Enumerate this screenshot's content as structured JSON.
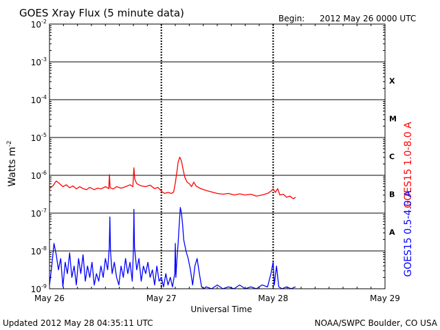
{
  "chart_data": {
    "type": "line",
    "title": "GOES Xray Flux (5 minute data)",
    "begin_label": "Begin:",
    "begin_value": "2012 May 26 0000 UTC",
    "xlabel": "Universal Time",
    "ylabel_base": "Watts m",
    "ylabel_exp": "-2",
    "x_range_days": [
      0,
      3
    ],
    "x_ticks": [
      {
        "day": 0,
        "label": "May 26"
      },
      {
        "day": 1,
        "label": "May 27"
      },
      {
        "day": 2,
        "label": "May 28"
      },
      {
        "day": 3,
        "label": "May 29"
      }
    ],
    "y_scale": "log",
    "y_range_exp": [
      -9,
      -2
    ],
    "y_ticks": [
      {
        "exp": -2,
        "base": "10",
        "sup": "-2"
      },
      {
        "exp": -3,
        "base": "10",
        "sup": "-3"
      },
      {
        "exp": -4,
        "base": "10",
        "sup": "-4"
      },
      {
        "exp": -5,
        "base": "10",
        "sup": "-5"
      },
      {
        "exp": -6,
        "base": "10",
        "sup": "-6"
      },
      {
        "exp": -7,
        "base": "10",
        "sup": "-7"
      },
      {
        "exp": -8,
        "base": "10",
        "sup": "-8"
      },
      {
        "exp": -9,
        "base": "10",
        "sup": "-9"
      }
    ],
    "flare_classes": [
      {
        "label": "X",
        "exp": -3.5
      },
      {
        "label": "M",
        "exp": -4.5
      },
      {
        "label": "C",
        "exp": -5.5
      },
      {
        "label": "B",
        "exp": -6.5
      },
      {
        "label": "A",
        "exp": -7.5
      }
    ],
    "grid": true,
    "series": [
      {
        "name": "GOES15 1.0-8.0 A",
        "color": "#ff0000",
        "points": [
          [
            0.0,
            -6.35
          ],
          [
            0.03,
            -6.28
          ],
          [
            0.06,
            -6.15
          ],
          [
            0.09,
            -6.22
          ],
          [
            0.12,
            -6.3
          ],
          [
            0.15,
            -6.25
          ],
          [
            0.18,
            -6.33
          ],
          [
            0.21,
            -6.28
          ],
          [
            0.24,
            -6.36
          ],
          [
            0.27,
            -6.3
          ],
          [
            0.3,
            -6.35
          ],
          [
            0.33,
            -6.38
          ],
          [
            0.36,
            -6.32
          ],
          [
            0.4,
            -6.38
          ],
          [
            0.43,
            -6.34
          ],
          [
            0.46,
            -6.36
          ],
          [
            0.5,
            -6.3
          ],
          [
            0.53,
            -6.35
          ],
          [
            0.536,
            -5.98
          ],
          [
            0.542,
            -6.33
          ],
          [
            0.57,
            -6.36
          ],
          [
            0.6,
            -6.3
          ],
          [
            0.64,
            -6.34
          ],
          [
            0.68,
            -6.3
          ],
          [
            0.72,
            -6.25
          ],
          [
            0.745,
            -6.3
          ],
          [
            0.755,
            -5.8
          ],
          [
            0.762,
            -6.1
          ],
          [
            0.78,
            -6.22
          ],
          [
            0.82,
            -6.28
          ],
          [
            0.86,
            -6.3
          ],
          [
            0.9,
            -6.26
          ],
          [
            0.94,
            -6.35
          ],
          [
            0.97,
            -6.32
          ],
          [
            1.0,
            -6.42
          ],
          [
            1.03,
            -6.48
          ],
          [
            1.06,
            -6.45
          ],
          [
            1.09,
            -6.48
          ],
          [
            1.11,
            -6.44
          ],
          [
            1.125,
            -6.2
          ],
          [
            1.14,
            -5.9
          ],
          [
            1.15,
            -5.65
          ],
          [
            1.165,
            -5.52
          ],
          [
            1.18,
            -5.62
          ],
          [
            1.195,
            -5.85
          ],
          [
            1.21,
            -6.05
          ],
          [
            1.23,
            -6.18
          ],
          [
            1.25,
            -6.22
          ],
          [
            1.27,
            -6.3
          ],
          [
            1.29,
            -6.18
          ],
          [
            1.31,
            -6.28
          ],
          [
            1.35,
            -6.35
          ],
          [
            1.4,
            -6.4
          ],
          [
            1.45,
            -6.44
          ],
          [
            1.5,
            -6.48
          ],
          [
            1.55,
            -6.5
          ],
          [
            1.6,
            -6.48
          ],
          [
            1.65,
            -6.52
          ],
          [
            1.7,
            -6.49
          ],
          [
            1.75,
            -6.52
          ],
          [
            1.8,
            -6.5
          ],
          [
            1.85,
            -6.55
          ],
          [
            1.9,
            -6.52
          ],
          [
            1.95,
            -6.48
          ],
          [
            1.98,
            -6.42
          ],
          [
            2.0,
            -6.36
          ],
          [
            2.02,
            -6.45
          ],
          [
            2.04,
            -6.35
          ],
          [
            2.06,
            -6.52
          ],
          [
            2.09,
            -6.5
          ],
          [
            2.12,
            -6.58
          ],
          [
            2.15,
            -6.55
          ],
          [
            2.18,
            -6.62
          ],
          [
            2.2,
            -6.58
          ]
        ]
      },
      {
        "name": "GOES15 0.5-4.0 A",
        "color": "#0000ff",
        "points": [
          [
            0.0,
            -8.9
          ],
          [
            0.02,
            -8.4
          ],
          [
            0.04,
            -7.8
          ],
          [
            0.06,
            -8.1
          ],
          [
            0.08,
            -8.5
          ],
          [
            0.1,
            -8.2
          ],
          [
            0.12,
            -8.95
          ],
          [
            0.14,
            -8.3
          ],
          [
            0.16,
            -8.6
          ],
          [
            0.18,
            -8.05
          ],
          [
            0.2,
            -8.7
          ],
          [
            0.22,
            -8.4
          ],
          [
            0.24,
            -8.9
          ],
          [
            0.26,
            -8.2
          ],
          [
            0.28,
            -8.6
          ],
          [
            0.3,
            -8.1
          ],
          [
            0.32,
            -8.8
          ],
          [
            0.34,
            -8.4
          ],
          [
            0.36,
            -8.7
          ],
          [
            0.38,
            -8.3
          ],
          [
            0.4,
            -8.9
          ],
          [
            0.42,
            -8.6
          ],
          [
            0.44,
            -8.8
          ],
          [
            0.46,
            -8.4
          ],
          [
            0.48,
            -8.7
          ],
          [
            0.5,
            -8.2
          ],
          [
            0.52,
            -8.5
          ],
          [
            0.535,
            -7.9
          ],
          [
            0.54,
            -7.1
          ],
          [
            0.545,
            -8.0
          ],
          [
            0.56,
            -8.6
          ],
          [
            0.58,
            -8.3
          ],
          [
            0.6,
            -8.7
          ],
          [
            0.62,
            -8.9
          ],
          [
            0.64,
            -8.4
          ],
          [
            0.66,
            -8.7
          ],
          [
            0.68,
            -8.2
          ],
          [
            0.7,
            -8.6
          ],
          [
            0.72,
            -8.3
          ],
          [
            0.74,
            -8.8
          ],
          [
            0.75,
            -8.0
          ],
          [
            0.755,
            -6.9
          ],
          [
            0.76,
            -7.9
          ],
          [
            0.78,
            -8.5
          ],
          [
            0.8,
            -8.2
          ],
          [
            0.82,
            -8.8
          ],
          [
            0.84,
            -8.4
          ],
          [
            0.86,
            -8.6
          ],
          [
            0.88,
            -8.3
          ],
          [
            0.9,
            -8.7
          ],
          [
            0.92,
            -8.5
          ],
          [
            0.94,
            -8.9
          ],
          [
            0.96,
            -8.4
          ],
          [
            0.98,
            -8.8
          ],
          [
            1.0,
            -8.7
          ],
          [
            1.02,
            -8.95
          ],
          [
            1.04,
            -8.6
          ],
          [
            1.06,
            -8.9
          ],
          [
            1.08,
            -8.7
          ],
          [
            1.1,
            -8.95
          ],
          [
            1.12,
            -8.6
          ],
          [
            1.125,
            -7.8
          ],
          [
            1.13,
            -8.7
          ],
          [
            1.14,
            -8.2
          ],
          [
            1.15,
            -7.8
          ],
          [
            1.16,
            -7.3
          ],
          [
            1.17,
            -6.85
          ],
          [
            1.18,
            -7.0
          ],
          [
            1.19,
            -7.3
          ],
          [
            1.2,
            -7.7
          ],
          [
            1.22,
            -8.0
          ],
          [
            1.24,
            -8.2
          ],
          [
            1.26,
            -8.5
          ],
          [
            1.28,
            -8.9
          ],
          [
            1.3,
            -8.4
          ],
          [
            1.32,
            -8.2
          ],
          [
            1.34,
            -8.6
          ],
          [
            1.36,
            -8.95
          ],
          [
            1.38,
            -9.0
          ],
          [
            1.4,
            -8.95
          ],
          [
            1.45,
            -9.0
          ],
          [
            1.5,
            -8.9
          ],
          [
            1.55,
            -9.0
          ],
          [
            1.6,
            -8.95
          ],
          [
            1.65,
            -9.0
          ],
          [
            1.7,
            -8.9
          ],
          [
            1.75,
            -9.0
          ],
          [
            1.8,
            -8.95
          ],
          [
            1.85,
            -9.0
          ],
          [
            1.9,
            -8.9
          ],
          [
            1.95,
            -8.95
          ],
          [
            1.98,
            -8.6
          ],
          [
            2.0,
            -8.3
          ],
          [
            2.01,
            -8.9
          ],
          [
            2.03,
            -8.4
          ],
          [
            2.05,
            -8.95
          ],
          [
            2.08,
            -9.0
          ],
          [
            2.12,
            -8.95
          ],
          [
            2.16,
            -9.0
          ],
          [
            2.2,
            -8.95
          ]
        ]
      }
    ]
  },
  "footer": {
    "updated": "Updated 2012 May 28 04:35:11 UTC",
    "credit": "NOAA/SWPC Boulder, CO USA"
  }
}
